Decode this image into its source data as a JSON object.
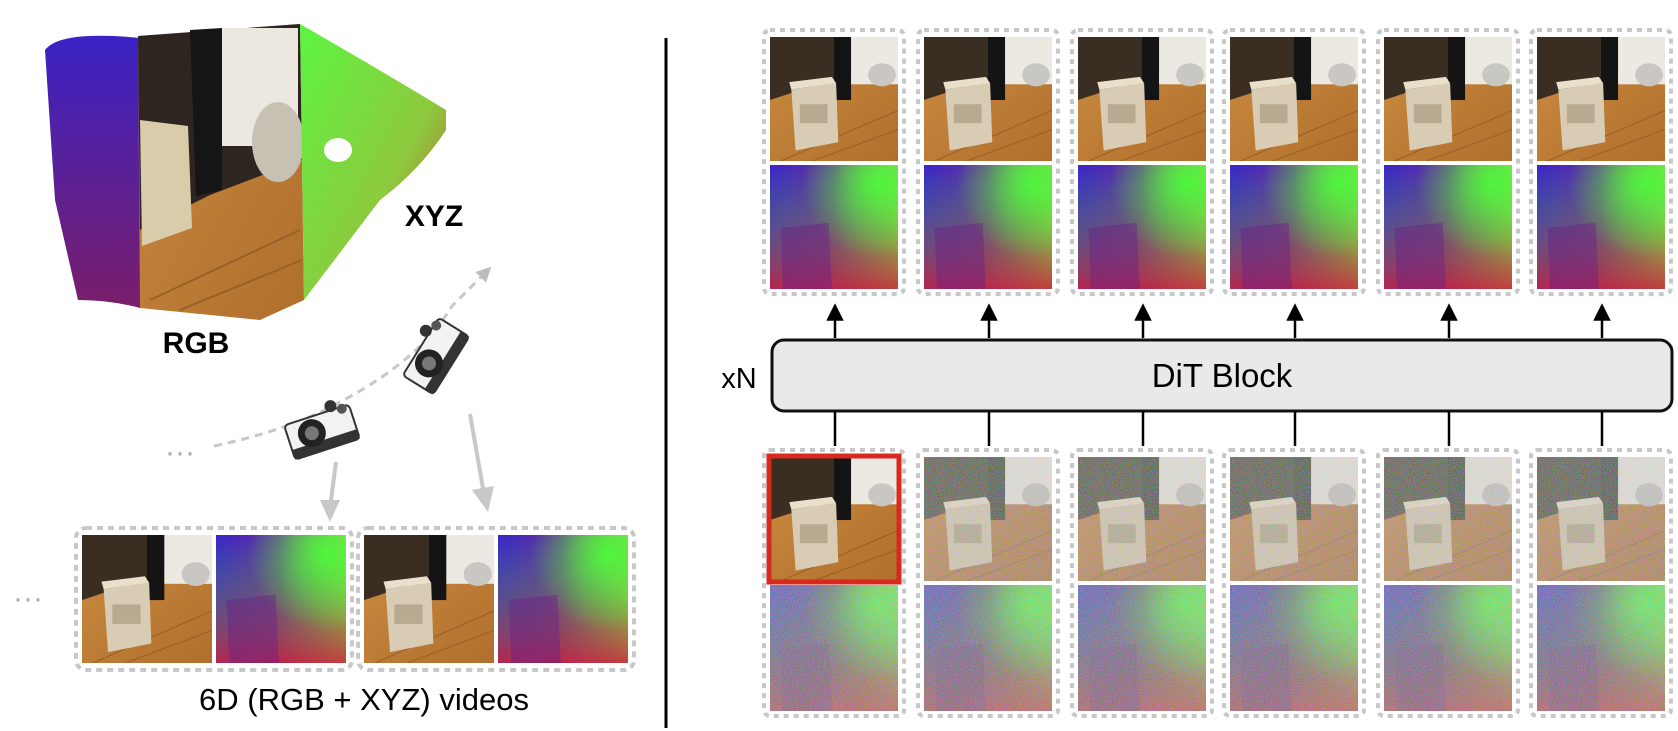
{
  "labels": {
    "rgb": "RGB",
    "xyz": "XYZ",
    "caption": "6D (RGB + XYZ) videos",
    "block": "DiT Block",
    "repeat": "xN",
    "ellipsis": "···"
  },
  "frames": {
    "count": 6,
    "conditioning_frame": 1,
    "condition_color": "#d9281e"
  },
  "colors": {
    "block_fill": "#e9e9e9",
    "frame_border": "#c8c8c8",
    "arrow": "#bdbdbd"
  }
}
